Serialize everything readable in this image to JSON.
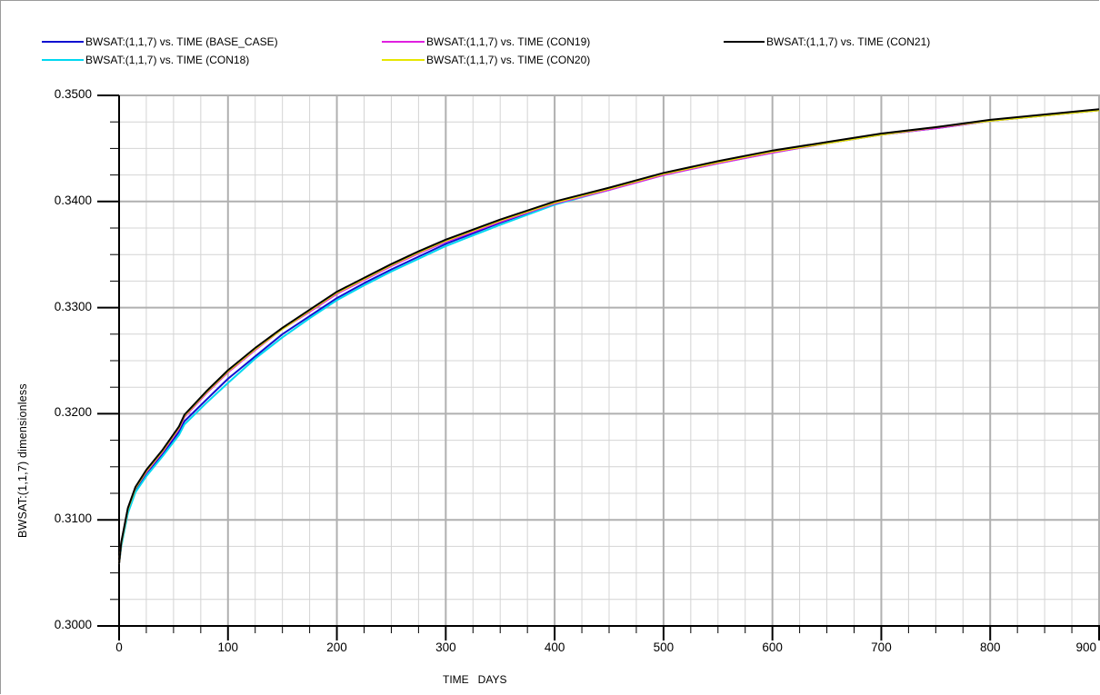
{
  "chart_data": {
    "type": "line",
    "xlabel": "TIME   DAYS",
    "ylabel": "BWSAT:(1,1,7)   dimensionless",
    "xlim": [
      0,
      900
    ],
    "ylim": [
      0.3,
      0.35
    ],
    "x_ticks": [
      "0",
      "100",
      "200",
      "300",
      "400",
      "500",
      "600",
      "700",
      "800",
      "900"
    ],
    "y_ticks": [
      "0.3000",
      "0.3100",
      "0.3200",
      "0.3300",
      "0.3400",
      "0.3500"
    ],
    "grid": true,
    "legend_position": "top",
    "series": [
      {
        "name": "BWSAT:(1,1,7) vs. TIME (BASE_CASE)",
        "color": "#1010d0",
        "x": [
          0,
          2,
          8,
          15,
          25,
          40,
          55,
          60,
          80,
          100,
          125,
          150,
          175,
          200,
          225,
          250,
          275,
          300,
          350,
          400,
          450,
          500,
          550,
          600,
          650,
          700,
          750,
          800,
          850,
          900
        ],
        "y": [
          0.3059,
          0.3076,
          0.3107,
          0.3128,
          0.3144,
          0.3162,
          0.3183,
          0.3193,
          0.3213,
          0.3233,
          0.3254,
          0.3275,
          0.3292,
          0.3309,
          0.3323,
          0.3336,
          0.3348,
          0.336,
          0.338,
          0.3398,
          0.3411,
          0.3426,
          0.3437,
          0.3447,
          0.3455,
          0.3463,
          0.3469,
          0.3476,
          0.3481,
          0.3486
        ]
      },
      {
        "name": "BWSAT:(1,1,7) vs. TIME (CON18)",
        "color": "#00d8f0",
        "x": [
          0,
          2,
          8,
          15,
          25,
          40,
          55,
          60,
          80,
          100,
          125,
          150,
          175,
          200,
          225,
          250,
          275,
          300,
          350,
          400,
          450,
          500,
          550,
          600,
          650,
          700,
          750,
          800,
          850,
          900
        ],
        "y": [
          0.3059,
          0.3075,
          0.3106,
          0.3126,
          0.3141,
          0.316,
          0.318,
          0.319,
          0.321,
          0.3229,
          0.3252,
          0.3272,
          0.329,
          0.3307,
          0.3321,
          0.3334,
          0.3346,
          0.3358,
          0.3378,
          0.3397,
          0.3411,
          0.3425,
          0.3436,
          0.3446,
          0.3455,
          0.3463,
          0.3469,
          0.3476,
          0.3481,
          0.3486
        ]
      },
      {
        "name": "BWSAT:(1,1,7) vs. TIME (CON19)",
        "color": "#e020e0",
        "x": [
          0,
          2,
          8,
          15,
          25,
          40,
          55,
          60,
          80,
          100,
          125,
          150,
          175,
          200,
          225,
          250,
          275,
          300,
          350,
          400,
          450,
          500,
          550,
          600,
          650,
          700,
          750,
          800,
          850,
          900
        ],
        "y": [
          0.3059,
          0.3078,
          0.311,
          0.313,
          0.3145,
          0.3164,
          0.3186,
          0.3197,
          0.3219,
          0.3239,
          0.326,
          0.328,
          0.3296,
          0.3313,
          0.3326,
          0.3339,
          0.3351,
          0.3362,
          0.3381,
          0.3398,
          0.3411,
          0.3425,
          0.3436,
          0.3446,
          0.3455,
          0.3463,
          0.3469,
          0.3476,
          0.3481,
          0.3486
        ]
      },
      {
        "name": "BWSAT:(1,1,7) vs. TIME (CON20)",
        "color": "#e6e600",
        "x": [
          0,
          2,
          8,
          15,
          25,
          40,
          55,
          60,
          80,
          100,
          125,
          150,
          175,
          200,
          225,
          250,
          275,
          300,
          350,
          400,
          450,
          500,
          550,
          600,
          650,
          700,
          750,
          800,
          850,
          900
        ],
        "y": [
          0.3059,
          0.3078,
          0.311,
          0.313,
          0.3146,
          0.3165,
          0.3187,
          0.3198,
          0.322,
          0.324,
          0.3261,
          0.328,
          0.3297,
          0.3314,
          0.3327,
          0.334,
          0.3352,
          0.3363,
          0.3382,
          0.3399,
          0.3412,
          0.3426,
          0.3437,
          0.3447,
          0.3455,
          0.3463,
          0.347,
          0.3476,
          0.3481,
          0.3486
        ]
      },
      {
        "name": "BWSAT:(1,1,7) vs. TIME (CON21)",
        "color": "#000000",
        "x": [
          0,
          2,
          8,
          15,
          25,
          40,
          55,
          60,
          80,
          100,
          125,
          150,
          175,
          200,
          225,
          250,
          275,
          300,
          350,
          400,
          450,
          500,
          550,
          600,
          650,
          700,
          750,
          800,
          850,
          900
        ],
        "y": [
          0.3059,
          0.3079,
          0.3111,
          0.3131,
          0.3147,
          0.3166,
          0.3188,
          0.3199,
          0.3221,
          0.3241,
          0.3262,
          0.3281,
          0.3298,
          0.3315,
          0.3328,
          0.3341,
          0.3353,
          0.3364,
          0.3383,
          0.34,
          0.3413,
          0.3427,
          0.3438,
          0.3448,
          0.3456,
          0.3464,
          0.347,
          0.3477,
          0.3482,
          0.3487
        ]
      }
    ]
  }
}
